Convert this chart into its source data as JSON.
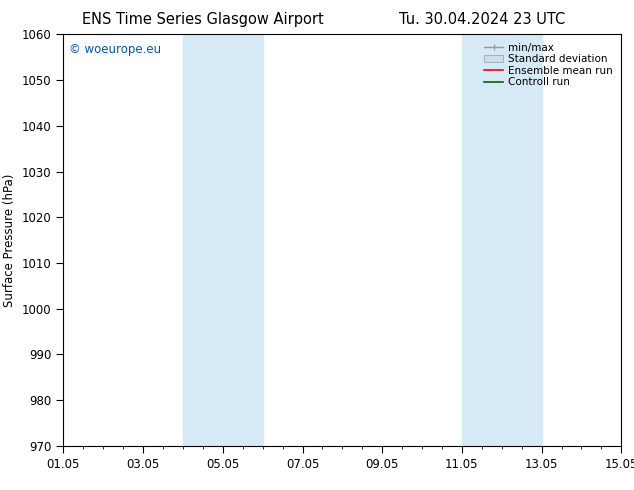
{
  "title_left": "ENS Time Series Glasgow Airport",
  "title_right": "Tu. 30.04.2024 23 UTC",
  "ylabel": "Surface Pressure (hPa)",
  "ylim": [
    970,
    1060
  ],
  "yticks": [
    970,
    980,
    990,
    1000,
    1010,
    1020,
    1030,
    1040,
    1050,
    1060
  ],
  "xlim_start": 0.0,
  "xlim_end": 14.0,
  "xtick_positions": [
    0,
    2,
    4,
    6,
    8,
    10,
    12,
    14
  ],
  "xtick_labels": [
    "01.05",
    "03.05",
    "05.05",
    "07.05",
    "09.05",
    "11.05",
    "13.05",
    "15.05"
  ],
  "watermark": "© woeurope.eu",
  "watermark_color": "#0055bb",
  "shaded_bands": [
    {
      "x_start": 3.0,
      "x_end": 3.75,
      "gap_start": 3.75,
      "gap_end": 4.0,
      "x_end2": 5.0
    },
    {
      "x_start": 10.0,
      "x_end": 10.75,
      "gap_start": 10.75,
      "gap_end": 11.0,
      "x_end2": 12.0
    }
  ],
  "shaded_color": "#d6eaf5",
  "background_color": "#ffffff",
  "legend_items": [
    {
      "label": "min/max",
      "color": "#999999",
      "lw": 1.0,
      "style": "minmax"
    },
    {
      "label": "Standard deviation",
      "color": "#ccdded",
      "lw": 8,
      "style": "bar"
    },
    {
      "label": "Ensemble mean run",
      "color": "#ff0000",
      "lw": 1.2,
      "style": "line"
    },
    {
      "label": "Controll run",
      "color": "#006600",
      "lw": 1.2,
      "style": "line"
    }
  ],
  "tick_fontsize": 8.5,
  "label_fontsize": 8.5,
  "title_fontsize": 10.5,
  "legend_fontsize": 7.5
}
